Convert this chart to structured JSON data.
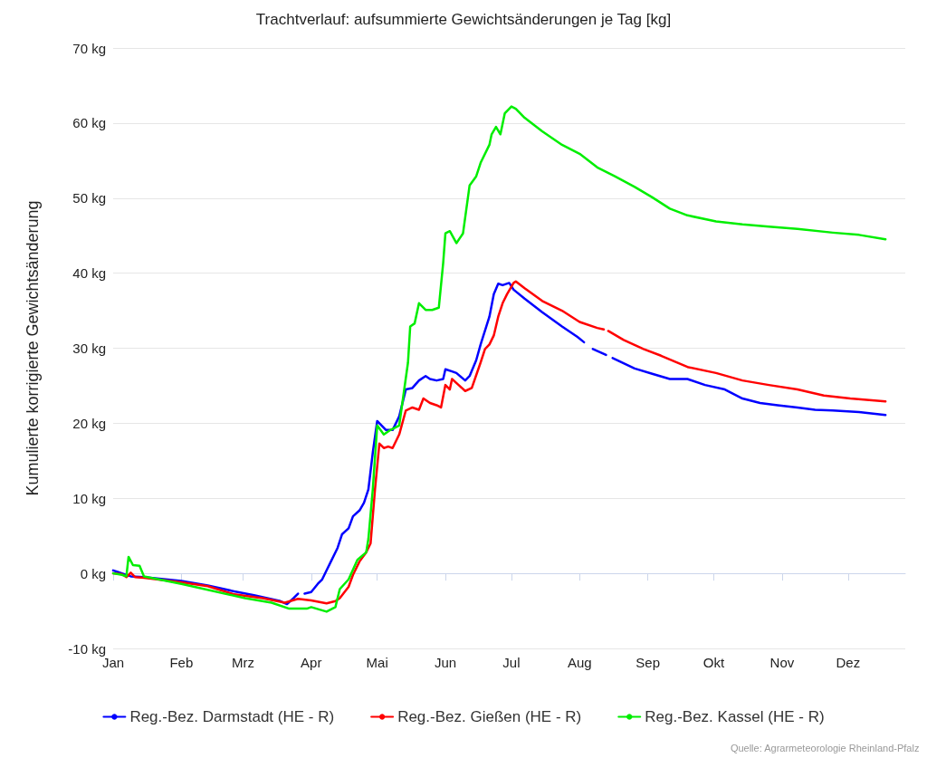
{
  "chart_data": {
    "type": "line",
    "title": "Trachtverlauf: aufsummierte Gewichtsänderungen je Tag [kg]",
    "ylabel": "Kumulierte korrigierte Gewichtsänderung",
    "annotations": [
      "Quelle: Agrarmeteorologie Rheinland-Pfalz"
    ],
    "xlim": [
      "--01-01",
      "--12-27"
    ],
    "xticks": [
      {
        "value": "--01-01",
        "label": "Jan"
      },
      {
        "value": "--02-01",
        "label": "Feb"
      },
      {
        "value": "--03-01",
        "label": "Mrz"
      },
      {
        "value": "--04-01",
        "label": "Apr"
      },
      {
        "value": "--05-01",
        "label": "Mai"
      },
      {
        "value": "--06-01",
        "label": "Jun"
      },
      {
        "value": "--07-01",
        "label": "Jul"
      },
      {
        "value": "--08-01",
        "label": "Aug"
      },
      {
        "value": "--09-01",
        "label": "Sep"
      },
      {
        "value": "--10-01",
        "label": "Okt"
      },
      {
        "value": "--11-01",
        "label": "Nov"
      },
      {
        "value": "--12-01",
        "label": "Dez"
      }
    ],
    "ylim": [
      -10,
      70
    ],
    "yticks": [
      {
        "value": -10,
        "label": "-10 kg"
      },
      {
        "value": 0,
        "label": "0 kg"
      },
      {
        "value": 10,
        "label": "10 kg"
      },
      {
        "value": 20,
        "label": "20 kg"
      },
      {
        "value": 30,
        "label": "30 kg"
      },
      {
        "value": 40,
        "label": "40 kg"
      },
      {
        "value": 50,
        "label": "50 kg"
      },
      {
        "value": 60,
        "label": "60 kg"
      },
      {
        "value": 70,
        "label": "70 kg"
      }
    ],
    "grid": "y",
    "legend": "bottom",
    "marker": "none",
    "line_style": "solid",
    "series": [
      {
        "name": "Reg.-Bez. Darmstadt (HE - R)",
        "color": "#0000ff",
        "x": [
          "--01-01",
          "--01-03",
          "--01-05",
          "--01-09",
          "--01-15",
          "--02-01",
          "--02-13",
          "--02-25",
          "--03-06",
          "--03-18",
          "--03-21",
          "--03-24",
          "--03-26",
          "--03-27",
          "--03-29",
          "--04-01",
          "--04-04",
          "--04-06",
          "--04-08",
          "--04-10",
          "--04-13",
          "--04-15",
          "--04-18",
          "--04-20",
          "--04-23",
          "--04-25",
          "--04-27",
          "--04-29",
          "--05-01",
          "--05-03",
          "--05-05",
          "--05-08",
          "--05-11",
          "--05-14",
          "--05-17",
          "--05-20",
          "--05-23",
          "--05-25",
          "--05-28",
          "--05-31",
          "--06-01",
          "--06-04",
          "--06-06",
          "--06-10",
          "--06-12",
          "--06-15",
          "--06-17",
          "--06-21",
          "--06-23",
          "--06-25",
          "--06-27",
          "--06-30",
          "--07-02",
          "--07-07",
          "--07-15",
          "--07-24",
          "--07-31",
          "--08-03",
          "--08-05",
          "--08-07",
          "--08-13",
          "--08-14",
          "--08-16",
          "--08-26",
          "--09-03",
          "--09-11",
          "--09-19",
          "--09-27",
          "--10-06",
          "--10-14",
          "--10-22",
          "--10-30",
          "--11-08",
          "--11-16",
          "--11-24",
          "--12-06",
          "--12-18"
        ],
        "values": [
          0.4,
          0.2,
          0,
          -0.4,
          -0.5,
          -1.0,
          -1.6,
          -2.4,
          -2.9,
          -3.7,
          -4.1,
          -3.3,
          -2.7,
          null,
          -2.7,
          -2.5,
          -1.4,
          -0.8,
          0.4,
          1.6,
          3.4,
          5.2,
          6.0,
          7.6,
          8.4,
          9.4,
          11.2,
          16.1,
          20.3,
          19.7,
          19.1,
          19.1,
          20.9,
          24.5,
          24.7,
          25.7,
          26.3,
          25.9,
          25.7,
          25.9,
          27.2,
          26.9,
          26.7,
          25.7,
          26.3,
          28.4,
          30.5,
          34.2,
          37.2,
          38.6,
          38.4,
          38.7,
          37.8,
          36.6,
          34.8,
          32.9,
          31.5,
          30.8,
          null,
          29.9,
          29.1,
          null,
          28.7,
          27.3,
          26.6,
          25.9,
          25.9,
          25.1,
          24.5,
          23.3,
          22.7,
          22.4,
          22.1,
          21.8,
          21.7,
          21.5,
          21.1
        ]
      },
      {
        "name": "Reg.-Bez. Gießen (HE - R)",
        "color": "#ff0000",
        "x": [
          "--01-01",
          "--01-05",
          "--01-07",
          "--01-09",
          "--01-11",
          "--01-15",
          "--02-01",
          "--02-13",
          "--02-25",
          "--03-10",
          "--03-20",
          "--03-26",
          "--04-01",
          "--04-08",
          "--04-12",
          "--04-14",
          "--04-18",
          "--04-20",
          "--04-23",
          "--04-26",
          "--04-28",
          "--04-30",
          "--05-02",
          "--05-04",
          "--05-06",
          "--05-08",
          "--05-11",
          "--05-14",
          "--05-17",
          "--05-20",
          "--05-22",
          "--05-25",
          "--05-28",
          "--05-30",
          "--06-01",
          "--06-03",
          "--06-04",
          "--06-07",
          "--06-10",
          "--06-13",
          "--06-17",
          "--06-19",
          "--06-21",
          "--06-23",
          "--06-25",
          "--06-27",
          "--06-29",
          "--07-02",
          "--07-03",
          "--07-07",
          "--07-15",
          "--07-24",
          "--08-01",
          "--08-09",
          "--08-12",
          "--08-13",
          "--08-14",
          "--08-21",
          "--08-30",
          "--09-07",
          "--09-19",
          "--10-02",
          "--10-14",
          "--10-26",
          "--11-08",
          "--11-20",
          "--12-02",
          "--12-18"
        ],
        "values": [
          0,
          -0.1,
          -0.5,
          0.1,
          -0.5,
          -0.6,
          -1.2,
          -1.7,
          -2.8,
          -3.3,
          -3.9,
          -3.4,
          -3.6,
          -4.0,
          -3.7,
          -3.3,
          -1.8,
          -0.2,
          1.6,
          2.8,
          4.0,
          11.2,
          17.3,
          16.7,
          16.9,
          16.7,
          18.5,
          21.7,
          22.1,
          21.8,
          23.3,
          22.7,
          22.4,
          22.1,
          25.1,
          24.5,
          25.9,
          25.1,
          24.3,
          24.7,
          28.1,
          29.9,
          30.5,
          31.7,
          34.2,
          36.0,
          37.2,
          38.7,
          38.9,
          38.0,
          36.3,
          35.0,
          33.5,
          32.7,
          32.5,
          null,
          32.3,
          31.1,
          29.9,
          29.0,
          27.5,
          26.7,
          25.7,
          25.1,
          24.5,
          23.7,
          23.3,
          22.9
        ]
      },
      {
        "name": "Reg.-Bez. Kassel (HE - R)",
        "color": "#00ee00",
        "x": [
          "--01-01",
          "--01-05",
          "--01-07",
          "--01-08",
          "--01-10",
          "--01-13",
          "--01-15",
          "--02-01",
          "--03-02",
          "--03-14",
          "--03-22",
          "--03-30",
          "--04-01",
          "--04-08",
          "--04-12",
          "--04-14",
          "--04-18",
          "--04-22",
          "--04-26",
          "--04-27",
          "--04-29",
          "--05-01",
          "--05-04",
          "--05-07",
          "--05-11",
          "--05-15",
          "--05-16",
          "--05-18",
          "--05-20",
          "--05-23",
          "--05-26",
          "--05-29",
          "--05-31",
          "--06-01",
          "--06-03",
          "--06-06",
          "--06-09",
          "--06-12",
          "--06-15",
          "--06-17",
          "--06-21",
          "--06-22",
          "--06-24",
          "--06-26",
          "--06-28",
          "--07-01",
          "--07-03",
          "--07-07",
          "--07-15",
          "--07-24",
          "--08-01",
          "--08-09",
          "--08-17",
          "--08-26",
          "--09-03",
          "--09-11",
          "--09-19",
          "--10-02",
          "--10-14",
          "--10-26",
          "--11-08",
          "--11-24",
          "--12-06",
          "--12-18"
        ],
        "values": [
          0,
          -0.2,
          -0.4,
          2.2,
          1.1,
          1.0,
          -0.4,
          -1.4,
          -3.3,
          -3.9,
          -4.7,
          -4.7,
          -4.5,
          -5.1,
          -4.5,
          -2.1,
          -0.8,
          1.8,
          2.8,
          4.6,
          11.2,
          19.7,
          18.5,
          19.1,
          19.7,
          28.1,
          32.9,
          33.3,
          36.0,
          35.1,
          35.1,
          35.4,
          41.4,
          45.3,
          45.6,
          44.0,
          45.3,
          51.7,
          52.9,
          54.7,
          57.1,
          58.5,
          59.5,
          58.5,
          61.3,
          62.2,
          61.9,
          60.7,
          58.9,
          57.1,
          55.9,
          54.1,
          52.9,
          51.5,
          50.1,
          48.6,
          47.7,
          46.9,
          46.5,
          46.2,
          45.9,
          45.4,
          45.1,
          44.5
        ]
      }
    ]
  }
}
